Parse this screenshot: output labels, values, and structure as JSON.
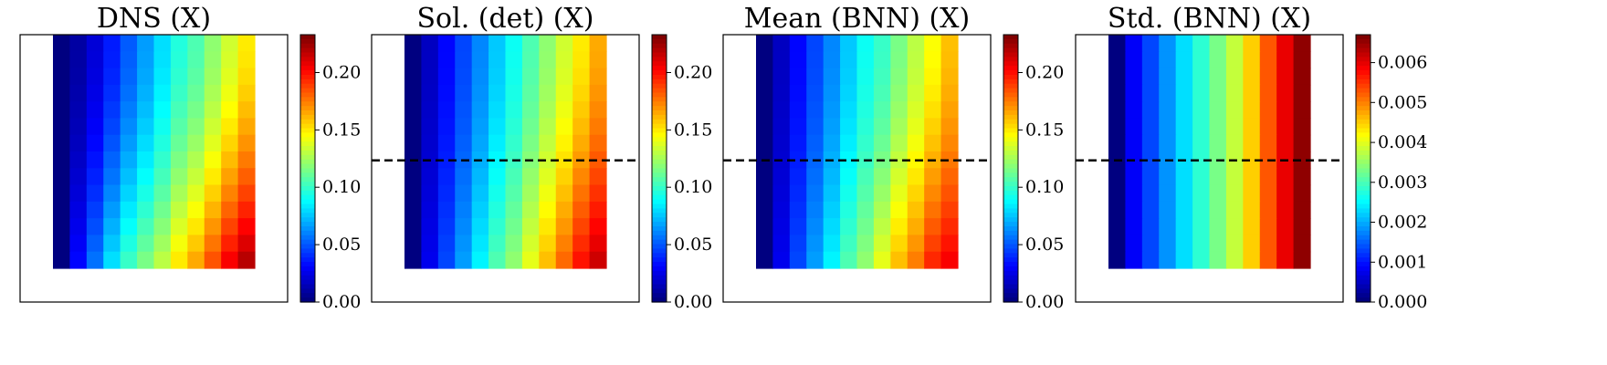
{
  "figure": {
    "background": "#ffffff",
    "colormap": "jet-like (blue-cyan-green-yellow-red)"
  },
  "chart_data": [
    {
      "type": "heatmap",
      "title": "DNS (X)",
      "grid": {
        "cols": 12,
        "rows": 14
      },
      "colorbar": {
        "vmin": 0.0,
        "vmax": 0.233,
        "ticks": [
          0.0,
          0.05,
          0.1,
          0.15,
          0.2
        ],
        "tick_labels": [
          "0.00",
          "0.05",
          "0.10",
          "0.15",
          "0.20"
        ]
      },
      "column_values": [
        0.0,
        0.008,
        0.02,
        0.035,
        0.05,
        0.065,
        0.08,
        0.095,
        0.105,
        0.12,
        0.135,
        0.15
      ],
      "bottom_row_values": [
        0.0,
        0.03,
        0.055,
        0.08,
        0.1,
        0.115,
        0.13,
        0.15,
        0.165,
        0.185,
        0.205,
        0.22
      ],
      "dashed_line": false
    },
    {
      "type": "heatmap",
      "title": "Sol. (det) (X)",
      "grid": {
        "cols": 12,
        "rows": 14
      },
      "colorbar": {
        "vmin": 0.0,
        "vmax": 0.233,
        "ticks": [
          0.0,
          0.05,
          0.1,
          0.15,
          0.2
        ],
        "tick_labels": [
          "0.00",
          "0.05",
          "0.10",
          "0.15",
          "0.20"
        ]
      },
      "column_values": [
        0.0,
        0.015,
        0.03,
        0.045,
        0.06,
        0.075,
        0.09,
        0.105,
        0.12,
        0.135,
        0.15,
        0.165
      ],
      "bottom_row_values": [
        0.0,
        0.025,
        0.045,
        0.065,
        0.085,
        0.105,
        0.12,
        0.14,
        0.16,
        0.18,
        0.2,
        0.215
      ],
      "dashed_line": true,
      "dashed_line_row_fraction": 0.47
    },
    {
      "type": "heatmap",
      "title": "Mean (BNN) (X)",
      "grid": {
        "cols": 12,
        "rows": 14
      },
      "colorbar": {
        "vmin": 0.0,
        "vmax": 0.233,
        "ticks": [
          0.0,
          0.05,
          0.1,
          0.15,
          0.2
        ],
        "tick_labels": [
          "0.00",
          "0.05",
          "0.10",
          "0.15",
          "0.20"
        ]
      },
      "column_values": [
        0.0,
        0.015,
        0.03,
        0.045,
        0.06,
        0.075,
        0.09,
        0.1,
        0.115,
        0.13,
        0.145,
        0.16
      ],
      "bottom_row_values": [
        0.0,
        0.025,
        0.045,
        0.065,
        0.085,
        0.105,
        0.12,
        0.14,
        0.16,
        0.175,
        0.195,
        0.205
      ],
      "dashed_line": true,
      "dashed_line_row_fraction": 0.47
    },
    {
      "type": "heatmap",
      "title": "Std. (BNN) (X)",
      "grid": {
        "cols": 12,
        "rows": 14
      },
      "colorbar": {
        "vmin": 0.0,
        "vmax": 0.0067,
        "ticks": [
          0.0,
          0.001,
          0.002,
          0.003,
          0.004,
          0.005,
          0.006
        ],
        "tick_labels": [
          "0.000",
          "0.001",
          "0.002",
          "0.003",
          "0.004",
          "0.005",
          "0.006"
        ]
      },
      "column_values": [
        0.0,
        0.0008,
        0.0013,
        0.0018,
        0.0023,
        0.0028,
        0.0033,
        0.0038,
        0.0045,
        0.0053,
        0.006,
        0.0066
      ],
      "bottom_row_values": [
        0.0,
        0.0008,
        0.0013,
        0.0018,
        0.0023,
        0.0028,
        0.0033,
        0.0038,
        0.0045,
        0.0053,
        0.006,
        0.0066
      ],
      "dashed_line": true,
      "dashed_line_row_fraction": 0.47
    }
  ]
}
